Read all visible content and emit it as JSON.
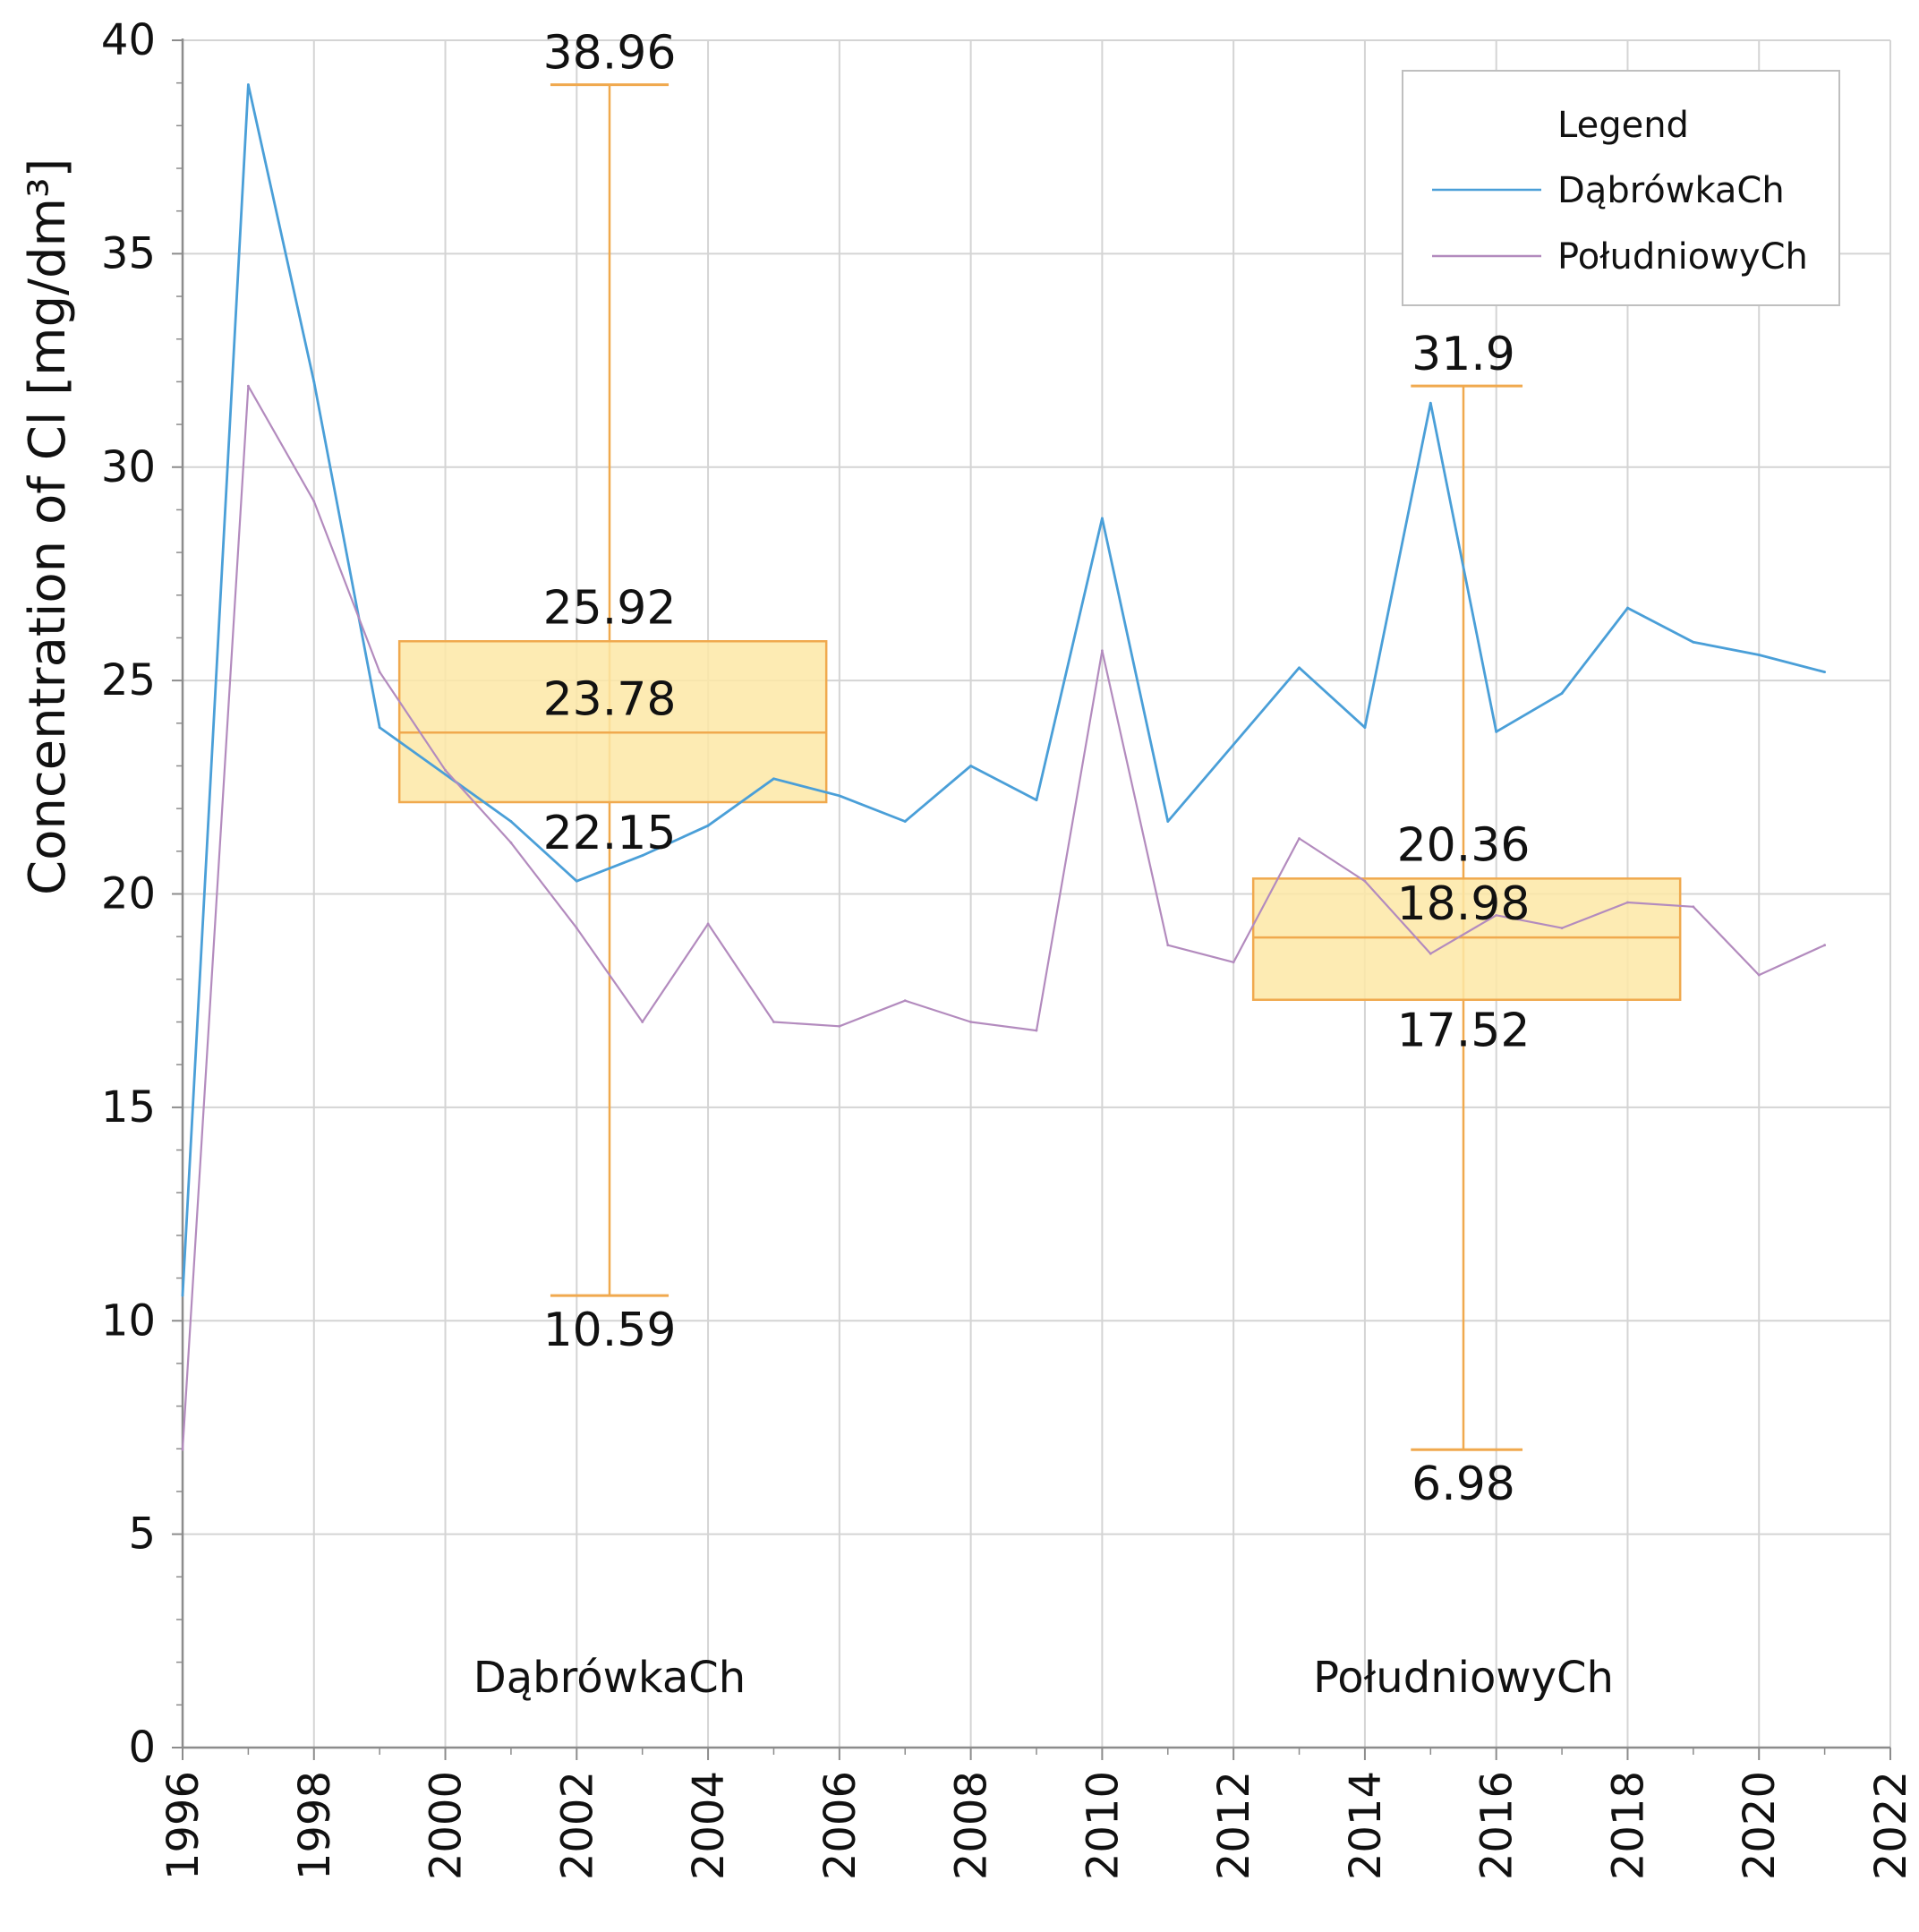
{
  "chart_data": {
    "type": "line",
    "ylabel": "Concentration of Cl [mg/dm³]",
    "xlabel": "",
    "xlim": [
      1996,
      2022
    ],
    "ylim": [
      0,
      40
    ],
    "x_ticks": [
      1996,
      1998,
      2000,
      2002,
      2004,
      2006,
      2008,
      2010,
      2012,
      2014,
      2016,
      2018,
      2020,
      2022
    ],
    "y_ticks": [
      0,
      5,
      10,
      15,
      20,
      25,
      30,
      35,
      40
    ],
    "grid": true,
    "legend": {
      "title": "Legend",
      "position": "top-right",
      "entries": [
        "DąbrówkaCh",
        "PołudniowyCh"
      ]
    },
    "series": [
      {
        "name": "DąbrówkaCh",
        "color": "#4a9fd8",
        "x": [
          1996,
          1997,
          1998,
          1999,
          2000,
          2001,
          2002,
          2003,
          2004,
          2005,
          2006,
          2007,
          2008,
          2009,
          2010,
          2011,
          2012,
          2013,
          2014,
          2015,
          2016,
          2017,
          2018,
          2019,
          2020,
          2021
        ],
        "values": [
          10.59,
          38.96,
          32.0,
          23.9,
          22.8,
          21.7,
          20.3,
          20.9,
          21.6,
          22.7,
          22.3,
          21.7,
          23.0,
          22.2,
          28.8,
          21.7,
          23.5,
          25.3,
          23.9,
          31.5,
          23.8,
          24.7,
          26.7,
          25.9,
          25.6,
          25.2
        ]
      },
      {
        "name": "PołudniowyCh",
        "color": "#b38bbe",
        "x": [
          1996,
          1997,
          1998,
          1999,
          2000,
          2001,
          2002,
          2003,
          2004,
          2005,
          2006,
          2007,
          2008,
          2009,
          2010,
          2011,
          2012,
          2013,
          2014,
          2015,
          2016,
          2017,
          2018,
          2019,
          2020,
          2021
        ],
        "values": [
          6.98,
          31.9,
          29.2,
          25.2,
          22.9,
          21.2,
          19.2,
          17.0,
          19.3,
          17.0,
          16.9,
          17.5,
          17.0,
          16.8,
          25.7,
          18.8,
          18.4,
          21.3,
          20.3,
          18.6,
          19.5,
          19.2,
          19.8,
          19.7,
          18.1,
          18.8
        ]
      }
    ],
    "boxplots": [
      {
        "name": "DąbrówkaCh",
        "label": "DąbrówkaCh",
        "max": 38.96,
        "q3": 25.92,
        "median": 23.78,
        "q1": 22.15,
        "min": 10.59,
        "max_label": "38.96",
        "q3_label": "25.92",
        "median_label": "23.78",
        "q1_label": "22.15",
        "min_label": "10.59",
        "center_x": 2002.5,
        "box_from_x": 1999.3,
        "box_to_x": 2005.8,
        "whisker_cap_from_x": 2001.6,
        "whisker_cap_to_x": 2003.4
      },
      {
        "name": "PołudniowyCh",
        "label": "PołudniowyCh",
        "max": 31.9,
        "q3": 20.36,
        "median": 18.98,
        "q1": 17.52,
        "min": 6.98,
        "max_label": "31.9",
        "q3_label": "20.36",
        "median_label": "18.98",
        "q1_label": "17.52",
        "min_label": "6.98",
        "center_x": 2015.5,
        "box_from_x": 2012.3,
        "box_to_x": 2018.8,
        "whisker_cap_from_x": 2014.7,
        "whisker_cap_to_x": 2016.4
      }
    ],
    "box_style": {
      "fill": "#fde7a6",
      "stroke": "#f0a94e",
      "whisker": "#f0a94e"
    },
    "grid_color": "#d4d4d4",
    "axis_color": "#8c8c8c"
  }
}
